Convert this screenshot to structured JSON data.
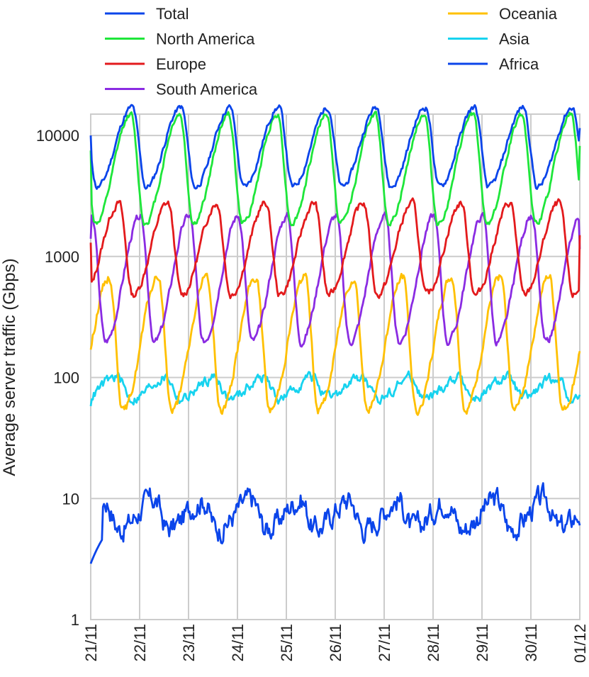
{
  "chart_data": {
    "type": "line",
    "title": "",
    "xlabel": "",
    "ylabel": "Average server traffic (Gbps)",
    "yscale": "log",
    "ylim": [
      1,
      15000
    ],
    "yticks": [
      1,
      10,
      100,
      1000,
      10000
    ],
    "ytick_labels": [
      "1",
      "10",
      "100",
      "1000",
      "10000"
    ],
    "xlim": [
      0,
      10
    ],
    "xticks": [
      0,
      1,
      2,
      3,
      4,
      5,
      6,
      7,
      8,
      9,
      10
    ],
    "xtick_labels": [
      "21/11",
      "22/11",
      "23/11",
      "24/11",
      "25/11",
      "26/11",
      "27/11",
      "28/11",
      "29/11",
      "30/11",
      "01/12"
    ],
    "grid": true,
    "legend_position": "top",
    "series": [
      {
        "name": "Total",
        "color": "#0b45ea",
        "base": 8000,
        "amp": 0.33,
        "peak": 0.85,
        "noise": 0.02,
        "seed": 11,
        "start": 10000,
        "end": 11500
      },
      {
        "name": "North America",
        "color": "#1ee63a",
        "base": 5300,
        "amp": 0.45,
        "peak": 0.82,
        "noise": 0.02,
        "seed": 12,
        "start": 7500,
        "end": 8200
      },
      {
        "name": "Europe",
        "color": "#e31a1c",
        "base": 1150,
        "amp": 0.38,
        "peak": 0.58,
        "noise": 0.025,
        "seed": 13,
        "start": 1300,
        "end": 1500
      },
      {
        "name": "South America",
        "color": "#8a2be2",
        "base": 650,
        "amp": 0.52,
        "peak": 0.02,
        "noise": 0.025,
        "seed": 14,
        "start": 1400,
        "end": 1150
      },
      {
        "name": "Oceania",
        "color": "#ffc000",
        "base": 190,
        "amp": 0.55,
        "peak": 0.38,
        "noise": 0.03,
        "seed": 15,
        "start": 170,
        "end": 165
      },
      {
        "name": "Asia",
        "color": "#17d3ef",
        "base": 82,
        "amp": 0.09,
        "peak": 0.55,
        "noise": 0.035,
        "seed": 16,
        "start": 58,
        "end": 72
      },
      {
        "name": "Africa",
        "color": "#0b45ea",
        "base": 7.4,
        "amp": 0.12,
        "peak": 0.3,
        "noise": 0.08,
        "seed": 17,
        "start": 2.9,
        "end": 6.0
      }
    ]
  }
}
